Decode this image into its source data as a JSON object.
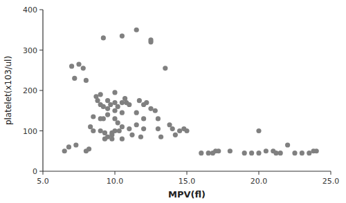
{
  "chart_data": {
    "type": "scatter",
    "xlabel": "MPV(fl)",
    "ylabel": "platelet(x103/ul)",
    "x": [
      6.5,
      7.0,
      7.2,
      7.5,
      7.8,
      8.0,
      8.0,
      8.2,
      8.5,
      8.5,
      8.7,
      8.8,
      9.0,
      9.0,
      9.0,
      9.0,
      9.2,
      9.2,
      9.3,
      9.5,
      9.5,
      9.5,
      9.5,
      9.7,
      9.8,
      9.8,
      9.8,
      10.0,
      10.0,
      10.0,
      10.0,
      10.0,
      10.2,
      10.2,
      10.3,
      10.5,
      10.5,
      10.5,
      10.5,
      10.8,
      11.0,
      11.0,
      11.2,
      11.5,
      11.5,
      11.5,
      11.8,
      12.0,
      12.0,
      12.0,
      12.2,
      12.5,
      12.5,
      12.5,
      13.0,
      13.0,
      13.2,
      13.5,
      13.8,
      14.0,
      14.2,
      14.5,
      15.0,
      16.0,
      16.5,
      16.8,
      17.0,
      17.2,
      18.0,
      19.0,
      19.5,
      20.0,
      20.0,
      20.5,
      21.0,
      21.2,
      21.5,
      22.0,
      22.5,
      23.0,
      23.5,
      23.8,
      24.0,
      6.8,
      7.3,
      8.3,
      9.3,
      10.7,
      11.7,
      12.8,
      14.8,
      9.2,
      10.5
    ],
    "y": [
      50,
      260,
      230,
      265,
      255,
      225,
      50,
      55,
      135,
      100,
      185,
      175,
      190,
      165,
      130,
      100,
      160,
      130,
      95,
      175,
      155,
      140,
      85,
      165,
      95,
      90,
      80,
      195,
      170,
      150,
      130,
      100,
      160,
      120,
      100,
      170,
      145,
      110,
      80,
      170,
      165,
      105,
      90,
      350,
      145,
      115,
      85,
      165,
      130,
      105,
      170,
      320,
      325,
      155,
      130,
      105,
      85,
      255,
      115,
      105,
      90,
      100,
      100,
      45,
      45,
      45,
      50,
      50,
      50,
      45,
      45,
      100,
      45,
      50,
      50,
      45,
      45,
      65,
      45,
      45,
      45,
      50,
      50,
      60,
      65,
      110,
      80,
      180,
      175,
      150,
      105,
      330,
      335
    ],
    "color": "#808080",
    "xlim": [
      5.0,
      25.0
    ],
    "ylim": [
      0,
      400
    ],
    "xticks": [
      {
        "value": 5.0,
        "label": "5.0"
      },
      {
        "value": 10.0,
        "label": "10.0"
      },
      {
        "value": 15.0,
        "label": "15.0"
      },
      {
        "value": 20.0,
        "label": "20.0"
      },
      {
        "value": 25.0,
        "label": "25.0"
      }
    ],
    "yticks": [
      0,
      100,
      200,
      300,
      400
    ]
  }
}
